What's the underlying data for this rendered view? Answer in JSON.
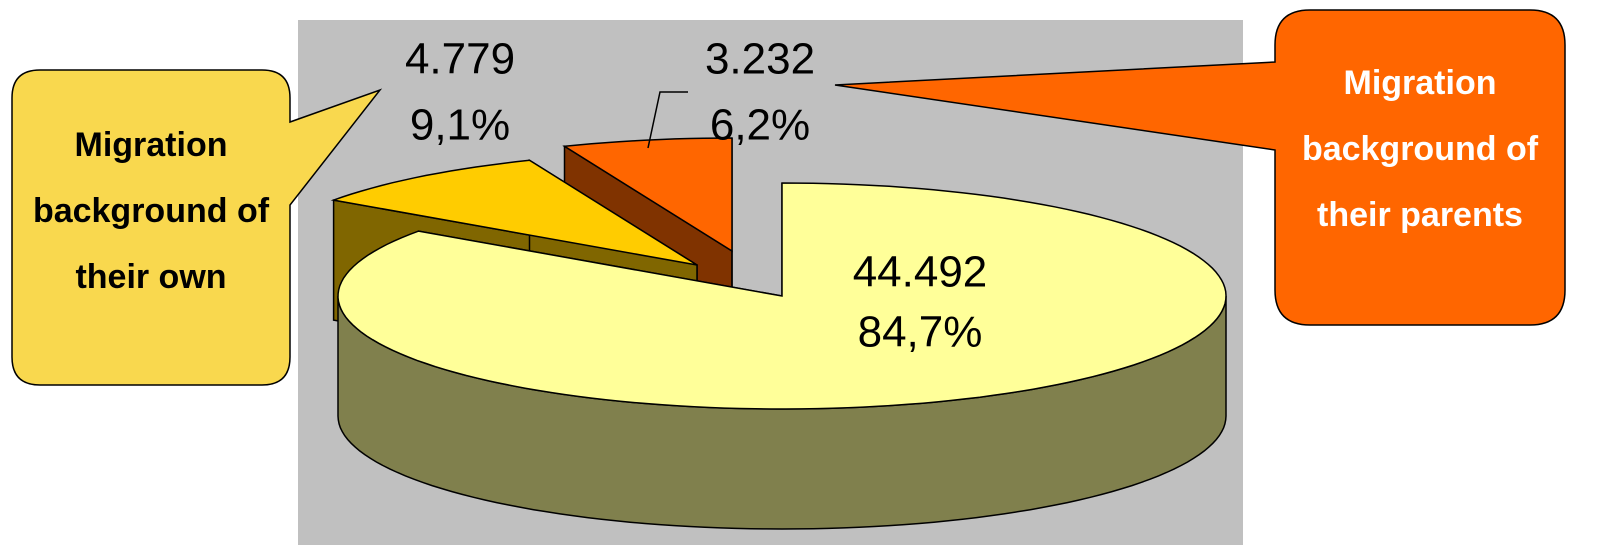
{
  "chart_data": {
    "type": "pie",
    "categories": [
      null,
      "Migration background of their own",
      "Migration background of their parents"
    ],
    "values": [
      44492,
      4779,
      3232
    ],
    "value_labels": [
      "44.492",
      "4.779",
      "3.232"
    ],
    "percentages": [
      84.7,
      9.1,
      6.2
    ],
    "percentage_labels": [
      "84,7%",
      "9,1%",
      "6,2%"
    ],
    "colors": [
      "#ffff99",
      "#ffcc00",
      "#ff6600"
    ]
  }
}
